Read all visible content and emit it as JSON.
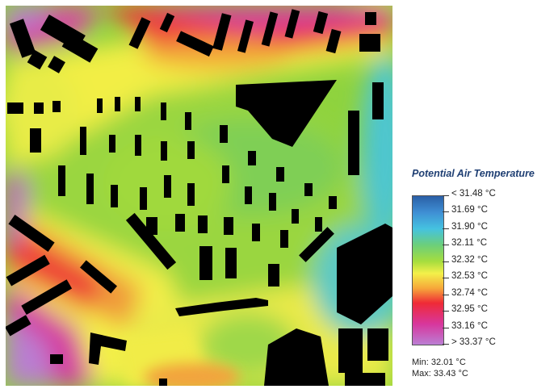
{
  "legend": {
    "title": "Potential Air Temperature",
    "labels": [
      "< 31.48 °C",
      "31.69 °C",
      "31.90 °C",
      "32.11 °C",
      "32.32 °C",
      "32.53 °C",
      "32.74 °C",
      "32.95 °C",
      "33.16 °C",
      "> 33.37 °C"
    ],
    "colors": [
      "#2a5fa6",
      "#3f8fd4",
      "#45c2e0",
      "#6ccf7a",
      "#a6dd3e",
      "#f3f04a",
      "#f6a83a",
      "#ef2a36",
      "#d8369c",
      "#bb7ed4"
    ]
  },
  "stats": {
    "min": "Min: 32.01 °C",
    "max": "Max: 33.43 °C"
  },
  "map": {
    "buildings_color": "#000000"
  }
}
